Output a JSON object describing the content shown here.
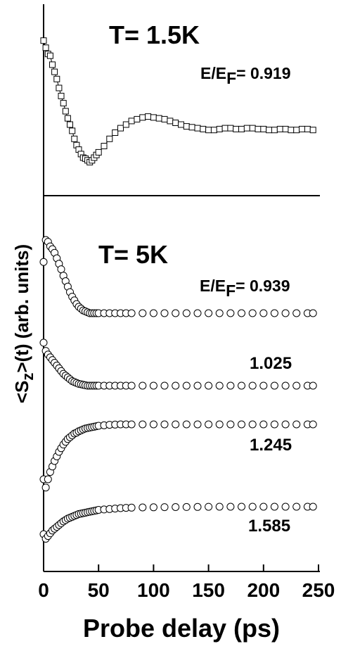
{
  "chart_data": [
    {
      "type": "scatter",
      "panel": "top",
      "title": "T= 1.5K",
      "xlim": [
        0,
        250
      ],
      "marker": "open-square",
      "fit_line": true,
      "grid": false,
      "series": [
        {
          "label_prefix": "E/E",
          "label_sub": "F",
          "label_value": "= 0.919",
          "x": [
            0,
            2,
            4,
            6,
            8,
            10,
            12,
            14,
            16,
            18,
            20,
            22,
            24,
            26,
            28,
            30,
            32,
            34,
            36,
            38,
            40,
            42,
            44,
            46,
            48,
            50,
            55,
            60,
            65,
            70,
            75,
            80,
            85,
            90,
            95,
            100,
            105,
            110,
            115,
            120,
            125,
            130,
            135,
            140,
            145,
            150,
            155,
            160,
            165,
            170,
            175,
            180,
            185,
            190,
            195,
            200,
            205,
            210,
            215,
            220,
            225,
            230,
            235,
            240,
            245
          ],
          "y": [
            1.05,
            0.97,
            0.9,
            0.88,
            0.78,
            0.7,
            0.62,
            0.52,
            0.43,
            0.35,
            0.26,
            0.18,
            0.11,
            0.04,
            -0.05,
            -0.12,
            -0.17,
            -0.22,
            -0.26,
            -0.27,
            -0.29,
            -0.31,
            -0.29,
            -0.26,
            -0.23,
            -0.2,
            -0.13,
            -0.05,
            0.02,
            0.07,
            0.11,
            0.15,
            0.17,
            0.19,
            0.2,
            0.19,
            0.18,
            0.17,
            0.15,
            0.13,
            0.11,
            0.09,
            0.08,
            0.07,
            0.06,
            0.05,
            0.05,
            0.06,
            0.07,
            0.07,
            0.06,
            0.06,
            0.07,
            0.07,
            0.06,
            0.06,
            0.05,
            0.05,
            0.06,
            0.06,
            0.05,
            0.05,
            0.06,
            0.06,
            0.05
          ]
        }
      ]
    },
    {
      "type": "scatter",
      "panel": "bottom",
      "title": "T= 5K",
      "xlabel": "Probe delay (ps)",
      "ylabel": "<S",
      "ylabel_sub": "z",
      "ylabel_rest": ">(t)  (arb. units)",
      "xlim": [
        0,
        250
      ],
      "xticks": [
        "0",
        "50",
        "100",
        "150",
        "200",
        "250"
      ],
      "marker": "open-circle",
      "grid": false,
      "series": [
        {
          "label_prefix": "E/E",
          "label_sub": "F",
          "label_value": "= 0.939",
          "x": [
            0,
            2,
            4,
            6,
            8,
            10,
            12,
            14,
            16,
            18,
            20,
            22,
            24,
            26,
            28,
            30,
            32,
            34,
            36,
            38,
            40,
            42,
            44,
            46,
            48,
            50,
            55,
            60,
            65,
            70,
            75,
            80,
            90,
            100,
            110,
            120,
            130,
            140,
            150,
            160,
            170,
            180,
            190,
            200,
            210,
            220,
            230,
            240,
            245
          ],
          "y": [
            0.76,
            1.0,
            0.98,
            0.93,
            0.9,
            0.86,
            0.8,
            0.74,
            0.68,
            0.61,
            0.55,
            0.49,
            0.43,
            0.38,
            0.34,
            0.3,
            0.27,
            0.25,
            0.23,
            0.22,
            0.21,
            0.2,
            0.2,
            0.2,
            0.2,
            0.2,
            0.2,
            0.2,
            0.2,
            0.2,
            0.2,
            0.2,
            0.2,
            0.2,
            0.2,
            0.2,
            0.2,
            0.2,
            0.2,
            0.2,
            0.2,
            0.2,
            0.2,
            0.2,
            0.2,
            0.2,
            0.2,
            0.2,
            0.2
          ]
        },
        {
          "label": "1.025",
          "x": [
            0,
            2,
            4,
            6,
            8,
            10,
            12,
            14,
            16,
            18,
            20,
            22,
            24,
            26,
            28,
            30,
            32,
            34,
            36,
            38,
            40,
            42,
            44,
            46,
            48,
            50,
            55,
            60,
            65,
            70,
            75,
            80,
            90,
            100,
            110,
            120,
            130,
            140,
            150,
            160,
            170,
            180,
            190,
            200,
            210,
            220,
            230,
            240,
            245
          ],
          "y": [
            0.61,
            0.52,
            0.48,
            0.45,
            0.42,
            0.39,
            0.36,
            0.33,
            0.3,
            0.27,
            0.25,
            0.23,
            0.21,
            0.19,
            0.18,
            0.17,
            0.16,
            0.155,
            0.15,
            0.145,
            0.14,
            0.14,
            0.14,
            0.14,
            0.14,
            0.14,
            0.14,
            0.14,
            0.14,
            0.14,
            0.14,
            0.14,
            0.14,
            0.14,
            0.14,
            0.14,
            0.14,
            0.14,
            0.14,
            0.14,
            0.14,
            0.14,
            0.14,
            0.14,
            0.14,
            0.14,
            0.14,
            0.14,
            0.14
          ]
        },
        {
          "label": "1.245",
          "x": [
            0,
            2,
            4,
            6,
            8,
            10,
            12,
            14,
            16,
            18,
            20,
            22,
            24,
            26,
            28,
            30,
            32,
            34,
            36,
            38,
            40,
            42,
            44,
            46,
            48,
            50,
            55,
            60,
            65,
            70,
            75,
            80,
            90,
            100,
            110,
            120,
            130,
            140,
            150,
            160,
            170,
            180,
            190,
            200,
            210,
            220,
            230,
            240,
            245
          ],
          "y": [
            -0.4,
            -0.49,
            -0.4,
            -0.32,
            -0.26,
            -0.2,
            -0.15,
            -0.1,
            -0.06,
            -0.02,
            0.01,
            0.04,
            0.06,
            0.08,
            0.1,
            0.11,
            0.125,
            0.135,
            0.145,
            0.155,
            0.16,
            0.165,
            0.17,
            0.175,
            0.18,
            0.185,
            0.19,
            0.195,
            0.198,
            0.2,
            0.2,
            0.2,
            0.2,
            0.2,
            0.2,
            0.2,
            0.2,
            0.2,
            0.2,
            0.2,
            0.2,
            0.2,
            0.2,
            0.2,
            0.2,
            0.2,
            0.2,
            0.2,
            0.2
          ]
        },
        {
          "label": "1.585",
          "x": [
            0,
            2,
            4,
            6,
            8,
            10,
            12,
            14,
            16,
            18,
            20,
            22,
            24,
            26,
            28,
            30,
            32,
            34,
            36,
            38,
            40,
            42,
            44,
            46,
            48,
            50,
            55,
            60,
            65,
            70,
            75,
            80,
            90,
            100,
            110,
            120,
            130,
            140,
            150,
            160,
            170,
            180,
            190,
            200,
            210,
            220,
            230,
            240,
            245
          ],
          "y": [
            -0.22,
            -0.27,
            -0.24,
            -0.21,
            -0.18,
            -0.16,
            -0.14,
            -0.12,
            -0.1,
            -0.08,
            -0.065,
            -0.05,
            -0.04,
            -0.03,
            -0.02,
            -0.01,
            0.0,
            0.005,
            0.01,
            0.015,
            0.02,
            0.025,
            0.03,
            0.035,
            0.04,
            0.045,
            0.05,
            0.055,
            0.06,
            0.065,
            0.068,
            0.07,
            0.072,
            0.074,
            0.075,
            0.076,
            0.077,
            0.078,
            0.079,
            0.08,
            0.08,
            0.08,
            0.08,
            0.08,
            0.08,
            0.08,
            0.08,
            0.08,
            0.08
          ]
        }
      ]
    }
  ]
}
